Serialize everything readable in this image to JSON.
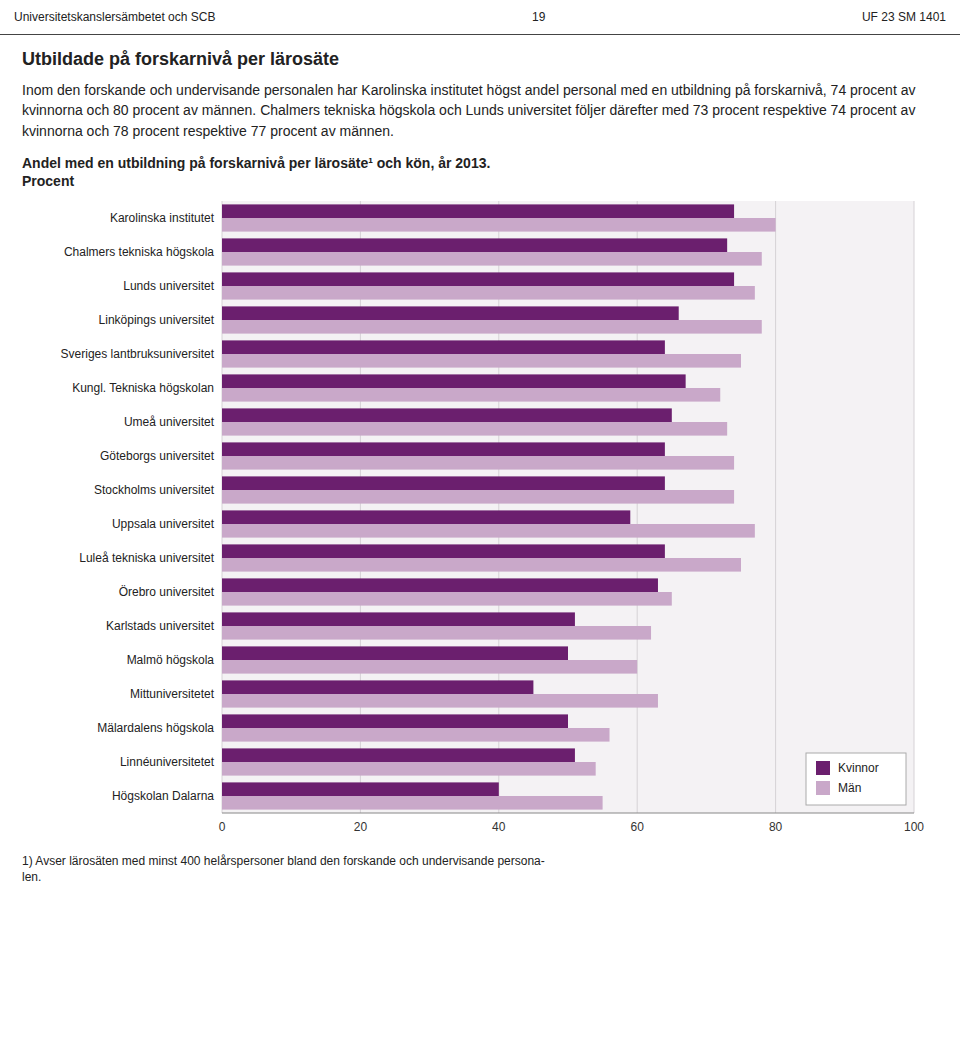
{
  "header_left": "Universitetskanslersämbetet och SCB",
  "header_center": "19",
  "header_right": "UF 23 SM 1401",
  "heading": "Utbildade på forskarnivå per lärosäte",
  "intro": "Inom den forskande och undervisande personalen har Karolinska institutet högst andel personal med en utbildning på forskarnivå, 74 procent av kvinnorna och 80 procent av männen. Chalmers tekniska högskola och Lunds universitet följer därefter med 73 procent respektive 74 procent av kvinnorna och 78 procent respektive 77 procent av männen.",
  "footnote": "1) Avser lärosäten med minst 400 helårspersoner bland den forskande och undervisande persona-\nlen.",
  "chart_data": {
    "type": "bar",
    "orientation": "horizontal",
    "title": "Andel med en utbildning på forskarnivå per lärosäte¹ och kön, år 2013.",
    "subtitle": "Procent",
    "categories": [
      "Karolinska institutet",
      "Chalmers tekniska högskola",
      "Lunds universitet",
      "Linköpings universitet",
      "Sveriges lantbruksuniversitet",
      "Kungl. Tekniska högskolan",
      "Umeå universitet",
      "Göteborgs universitet",
      "Stockholms universitet",
      "Uppsala universitet",
      "Luleå tekniska universitet",
      "Örebro universitet",
      "Karlstads universitet",
      "Malmö högskola",
      "Mittuniversitetet",
      "Mälardalens högskola",
      "Linnéuniversitetet",
      "Högskolan Dalarna"
    ],
    "series": [
      {
        "name": "Kvinnor",
        "color": "#6B1F6E",
        "values": [
          74,
          73,
          74,
          66,
          64,
          67,
          65,
          64,
          64,
          59,
          64,
          63,
          51,
          50,
          45,
          50,
          51,
          40
        ]
      },
      {
        "name": "Män",
        "color": "#C9A8C9",
        "values": [
          80,
          78,
          77,
          78,
          75,
          72,
          73,
          74,
          74,
          77,
          75,
          65,
          62,
          60,
          63,
          56,
          54,
          55
        ]
      }
    ],
    "xlim": [
      0,
      100
    ],
    "xticks": [
      0,
      20,
      40,
      60,
      80,
      100
    ],
    "grid": true,
    "legend": "lower right"
  }
}
